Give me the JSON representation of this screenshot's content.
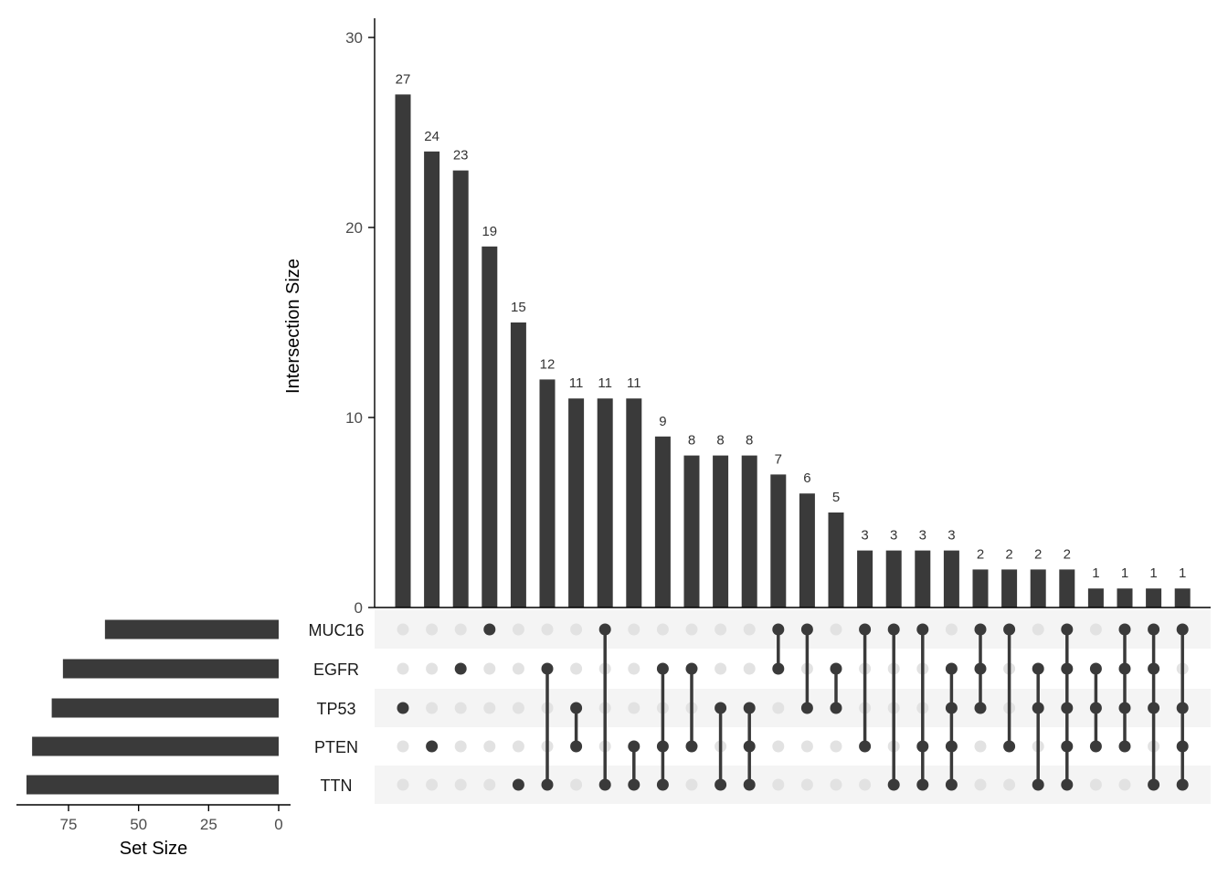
{
  "chart_data": {
    "type": "upset",
    "sets": [
      "MUC16",
      "EGFR",
      "TP53",
      "PTEN",
      "TTN"
    ],
    "set_sizes": [
      62,
      77,
      81,
      88,
      90
    ],
    "intersection_sizes": [
      27,
      24,
      23,
      19,
      15,
      12,
      11,
      11,
      11,
      9,
      8,
      8,
      8,
      7,
      6,
      5,
      3,
      3,
      3,
      3,
      2,
      2,
      2,
      2,
      1,
      1,
      1,
      1
    ],
    "intersections": [
      [
        "TP53"
      ],
      [
        "PTEN"
      ],
      [
        "EGFR"
      ],
      [
        "MUC16"
      ],
      [
        "TTN"
      ],
      [
        "EGFR",
        "TTN"
      ],
      [
        "TP53",
        "PTEN"
      ],
      [
        "MUC16",
        "TTN"
      ],
      [
        "PTEN",
        "TTN"
      ],
      [
        "EGFR",
        "PTEN",
        "TTN"
      ],
      [
        "EGFR",
        "PTEN"
      ],
      [
        "TP53",
        "TTN"
      ],
      [
        "TP53",
        "PTEN",
        "TTN"
      ],
      [
        "MUC16",
        "EGFR"
      ],
      [
        "MUC16",
        "TP53"
      ],
      [
        "EGFR",
        "TP53"
      ],
      [
        "MUC16",
        "PTEN"
      ],
      [
        "MUC16",
        "TTN"
      ],
      [
        "MUC16",
        "PTEN",
        "TTN"
      ],
      [
        "EGFR",
        "TP53",
        "PTEN",
        "TTN"
      ],
      [
        "MUC16",
        "EGFR",
        "TP53"
      ],
      [
        "MUC16",
        "PTEN"
      ],
      [
        "EGFR",
        "TP53",
        "TTN"
      ],
      [
        "MUC16",
        "EGFR",
        "TP53",
        "PTEN",
        "TTN"
      ],
      [
        "EGFR",
        "TP53",
        "PTEN"
      ],
      [
        "MUC16",
        "EGFR",
        "TP53",
        "PTEN"
      ],
      [
        "MUC16",
        "EGFR",
        "TP53",
        "TTN"
      ],
      [
        "MUC16",
        "TP53",
        "PTEN",
        "TTN"
      ]
    ],
    "ylabel": "Intersection Size",
    "ylim": [
      0,
      30
    ],
    "yticks": [
      0,
      10,
      20,
      30
    ],
    "set_size_label": "Set Size",
    "set_size_ticks": [
      75,
      50,
      25,
      0
    ],
    "set_size_lim": [
      0,
      93
    ],
    "colors": {
      "bar": "#3a3a3a",
      "dot_active": "#3a3a3a",
      "dot_inactive": "#e2e2e2",
      "stripe": "#f4f4f4",
      "axis": "#000000",
      "tick_text": "#4d4d4d"
    }
  }
}
